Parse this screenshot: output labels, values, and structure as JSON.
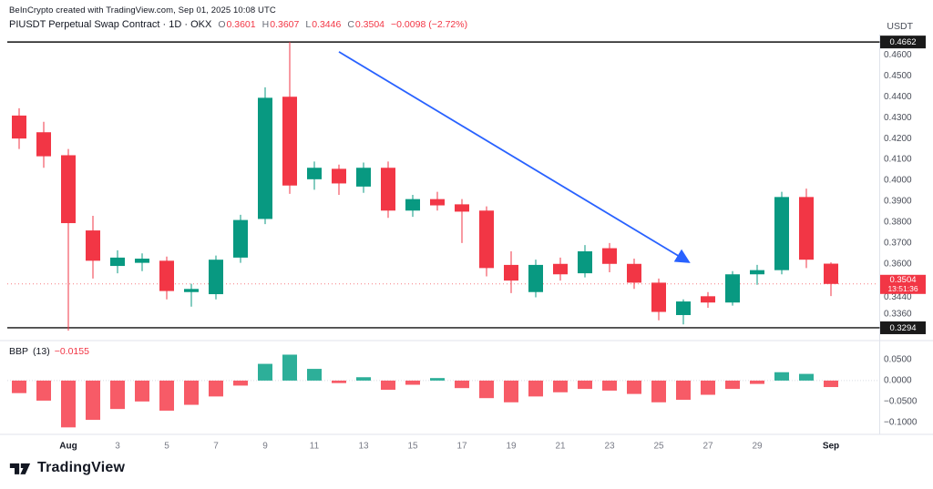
{
  "header": {
    "attribution": "BeInCrypto created with TradingView.com, Sep 01, 2025 10:08 UTC",
    "symbol_line": "PIUSDT Perpetual Swap Contract · 1D · OKX",
    "ohlc": {
      "o_label": "O",
      "o": "0.3601",
      "h_label": "H",
      "h": "0.3607",
      "l_label": "L",
      "l": "0.3446",
      "c_label": "C",
      "c": "0.3504",
      "change": "−0.0098 (−2.72%)"
    },
    "currency": "USDT"
  },
  "indicator": {
    "title": "BBP",
    "params": "(13)",
    "value": "−0.0155"
  },
  "footer": {
    "logo_text": "TradingView"
  },
  "colors": {
    "up": "#089981",
    "down": "#f23645",
    "hist_up": "#22ab94",
    "hist_down": "#f7525f",
    "accent_blue": "#2962ff",
    "chip_dark": "#1a1a1a",
    "chip_last": "#f23645",
    "axis_text": "#4a4e59",
    "minor_text": "#787b86",
    "separator": "#e0e3eb",
    "black_line": "#111111",
    "price_line": "#f77c80"
  },
  "chart_data": {
    "type": "candlestick",
    "title": "PIUSDT Perpetual Swap Contract 1D OKX",
    "price_panel": {
      "y_range": [
        0.3259,
        0.468
      ],
      "y_ticks": [
        {
          "v": 0.46,
          "label": "0.4600"
        },
        {
          "v": 0.45,
          "label": "0.4500"
        },
        {
          "v": 0.44,
          "label": "0.4400"
        },
        {
          "v": 0.43,
          "label": "0.4300"
        },
        {
          "v": 0.42,
          "label": "0.4200"
        },
        {
          "v": 0.41,
          "label": "0.4100"
        },
        {
          "v": 0.4,
          "label": "0.4000"
        },
        {
          "v": 0.39,
          "label": "0.3900"
        },
        {
          "v": 0.38,
          "label": "0.3800"
        },
        {
          "v": 0.37,
          "label": "0.3700"
        },
        {
          "v": 0.36,
          "label": "0.3600"
        },
        {
          "v": 0.344,
          "label": "0.3440"
        },
        {
          "v": 0.336,
          "label": "0.3360"
        }
      ],
      "hlines": [
        {
          "v": 0.4662,
          "label": "0.4662",
          "name": "resistance-line"
        },
        {
          "v": 0.3294,
          "label": "0.3294",
          "name": "support-line"
        }
      ],
      "last": {
        "price": 0.3504,
        "label": "0.3504",
        "countdown": "13:51:36"
      },
      "candles": [
        {
          "d": "Jul 30",
          "o": 0.431,
          "h": 0.4345,
          "l": 0.415,
          "c": 0.42
        },
        {
          "d": "Jul 31",
          "o": 0.423,
          "h": 0.428,
          "l": 0.406,
          "c": 0.4115
        },
        {
          "d": "Aug 1",
          "o": 0.412,
          "h": 0.415,
          "l": 0.328,
          "c": 0.3795
        },
        {
          "d": "Aug 2",
          "o": 0.376,
          "h": 0.383,
          "l": 0.353,
          "c": 0.3615
        },
        {
          "d": "Aug 3",
          "o": 0.359,
          "h": 0.3665,
          "l": 0.3555,
          "c": 0.363
        },
        {
          "d": "Aug 4",
          "o": 0.3605,
          "h": 0.365,
          "l": 0.3565,
          "c": 0.3625
        },
        {
          "d": "Aug 5",
          "o": 0.3615,
          "h": 0.3635,
          "l": 0.343,
          "c": 0.347
        },
        {
          "d": "Aug 6",
          "o": 0.3465,
          "h": 0.3505,
          "l": 0.3395,
          "c": 0.348
        },
        {
          "d": "Aug 7",
          "o": 0.3455,
          "h": 0.364,
          "l": 0.343,
          "c": 0.362
        },
        {
          "d": "Aug 8",
          "o": 0.363,
          "h": 0.3835,
          "l": 0.3605,
          "c": 0.381
        },
        {
          "d": "Aug 9",
          "o": 0.3815,
          "h": 0.4445,
          "l": 0.379,
          "c": 0.4395
        },
        {
          "d": "Aug 10",
          "o": 0.44,
          "h": 0.4662,
          "l": 0.3935,
          "c": 0.3975
        },
        {
          "d": "Aug 11",
          "o": 0.4005,
          "h": 0.409,
          "l": 0.3955,
          "c": 0.406
        },
        {
          "d": "Aug 12",
          "o": 0.4055,
          "h": 0.4075,
          "l": 0.393,
          "c": 0.3985
        },
        {
          "d": "Aug 13",
          "o": 0.397,
          "h": 0.4085,
          "l": 0.394,
          "c": 0.406
        },
        {
          "d": "Aug 14",
          "o": 0.406,
          "h": 0.409,
          "l": 0.382,
          "c": 0.3855
        },
        {
          "d": "Aug 15",
          "o": 0.3855,
          "h": 0.393,
          "l": 0.3825,
          "c": 0.391
        },
        {
          "d": "Aug 16",
          "o": 0.391,
          "h": 0.3945,
          "l": 0.3855,
          "c": 0.388
        },
        {
          "d": "Aug 17",
          "o": 0.3885,
          "h": 0.391,
          "l": 0.37,
          "c": 0.385
        },
        {
          "d": "Aug 18",
          "o": 0.3855,
          "h": 0.3875,
          "l": 0.354,
          "c": 0.358
        },
        {
          "d": "Aug 19",
          "o": 0.3595,
          "h": 0.366,
          "l": 0.346,
          "c": 0.352
        },
        {
          "d": "Aug 20",
          "o": 0.3465,
          "h": 0.362,
          "l": 0.344,
          "c": 0.3595
        },
        {
          "d": "Aug 21",
          "o": 0.36,
          "h": 0.363,
          "l": 0.352,
          "c": 0.355
        },
        {
          "d": "Aug 22",
          "o": 0.3555,
          "h": 0.369,
          "l": 0.3535,
          "c": 0.366
        },
        {
          "d": "Aug 23",
          "o": 0.3675,
          "h": 0.37,
          "l": 0.356,
          "c": 0.36
        },
        {
          "d": "Aug 24",
          "o": 0.36,
          "h": 0.3625,
          "l": 0.348,
          "c": 0.351
        },
        {
          "d": "Aug 25",
          "o": 0.351,
          "h": 0.353,
          "l": 0.333,
          "c": 0.337
        },
        {
          "d": "Aug 26",
          "o": 0.3355,
          "h": 0.343,
          "l": 0.331,
          "c": 0.342
        },
        {
          "d": "Aug 27",
          "o": 0.3445,
          "h": 0.3465,
          "l": 0.339,
          "c": 0.3415
        },
        {
          "d": "Aug 28",
          "o": 0.3415,
          "h": 0.3565,
          "l": 0.34,
          "c": 0.355
        },
        {
          "d": "Aug 29",
          "o": 0.355,
          "h": 0.3595,
          "l": 0.35,
          "c": 0.357
        },
        {
          "d": "Aug 30",
          "o": 0.357,
          "h": 0.3945,
          "l": 0.355,
          "c": 0.392
        },
        {
          "d": "Aug 31",
          "o": 0.392,
          "h": 0.396,
          "l": 0.358,
          "c": 0.362
        },
        {
          "d": "Sep 1",
          "o": 0.3601,
          "h": 0.3607,
          "l": 0.3446,
          "c": 0.3504
        }
      ]
    },
    "bbp_panel": {
      "name": "Bull Bear Power (13)",
      "y_range": [
        -0.12,
        0.087
      ],
      "y_ticks": [
        {
          "v": 0.05,
          "label": "0.0500"
        },
        {
          "v": 0.0,
          "label": "0.0000"
        },
        {
          "v": -0.05,
          "label": "−0.0500"
        },
        {
          "v": -0.1,
          "label": "−0.1000"
        }
      ],
      "values": [
        -0.03,
        -0.048,
        -0.112,
        -0.094,
        -0.068,
        -0.05,
        -0.072,
        -0.058,
        -0.038,
        -0.012,
        0.04,
        0.062,
        0.028,
        -0.006,
        0.008,
        -0.022,
        -0.01,
        0.006,
        -0.018,
        -0.042,
        -0.052,
        -0.038,
        -0.028,
        -0.02,
        -0.024,
        -0.032,
        -0.052,
        -0.046,
        -0.034,
        -0.02,
        -0.008,
        0.02,
        0.016,
        -0.0155
      ]
    },
    "x_ticks": [
      {
        "i": 2,
        "label": "Aug",
        "major": true
      },
      {
        "i": 4,
        "label": "3"
      },
      {
        "i": 6,
        "label": "5"
      },
      {
        "i": 8,
        "label": "7"
      },
      {
        "i": 10,
        "label": "9"
      },
      {
        "i": 12,
        "label": "11"
      },
      {
        "i": 14,
        "label": "13"
      },
      {
        "i": 16,
        "label": "15"
      },
      {
        "i": 18,
        "label": "17"
      },
      {
        "i": 20,
        "label": "19"
      },
      {
        "i": 22,
        "label": "21"
      },
      {
        "i": 24,
        "label": "23"
      },
      {
        "i": 26,
        "label": "25"
      },
      {
        "i": 28,
        "label": "27"
      },
      {
        "i": 30,
        "label": "29"
      },
      {
        "i": 33,
        "label": "Sep",
        "major": true
      }
    ],
    "annotation_arrow": {
      "from": {
        "i": 13.0,
        "price": 0.4615
      },
      "to": {
        "i": 27.2,
        "price": 0.361
      }
    }
  }
}
